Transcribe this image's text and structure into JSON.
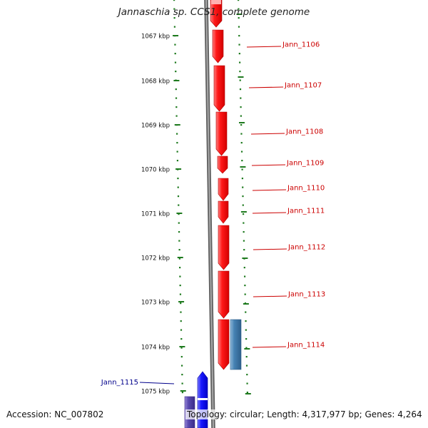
{
  "title": "Jannaschia sp. CCS1, complete genome",
  "accession": "Accession: NC_007802",
  "summary": "Topology: circular; Length: 4,317,977 bp; Genes: 4,264",
  "colors": {
    "backbone": "#7f7f7f",
    "forward_gene": "#ff1a1a",
    "reverse_gene": "#1a1aff",
    "reverse_gene_dim": "#5a4ab0",
    "other_feature": "#4682b4",
    "tick": "#1e7a1e",
    "label_forward": "#cc0000",
    "label_reverse": "#00008b"
  },
  "scale_labels": [
    "1067 kbp",
    "1068 kbp",
    "1069 kbp",
    "1070 kbp",
    "1071 kbp",
    "1072 kbp",
    "1073 kbp",
    "1074 kbp",
    "1075 kbp"
  ],
  "genes": [
    {
      "label": "Jann_1106",
      "strand": "forward"
    },
    {
      "label": "Jann_1107",
      "strand": "forward"
    },
    {
      "label": "Jann_1108",
      "strand": "forward"
    },
    {
      "label": "Jann_1109",
      "strand": "forward"
    },
    {
      "label": "Jann_1110",
      "strand": "forward"
    },
    {
      "label": "Jann_1111",
      "strand": "forward"
    },
    {
      "label": "Jann_1112",
      "strand": "forward"
    },
    {
      "label": "Jann_1113",
      "strand": "forward"
    },
    {
      "label": "Jann_1114",
      "strand": "forward"
    },
    {
      "label": "Jann_1115",
      "strand": "reverse"
    }
  ]
}
